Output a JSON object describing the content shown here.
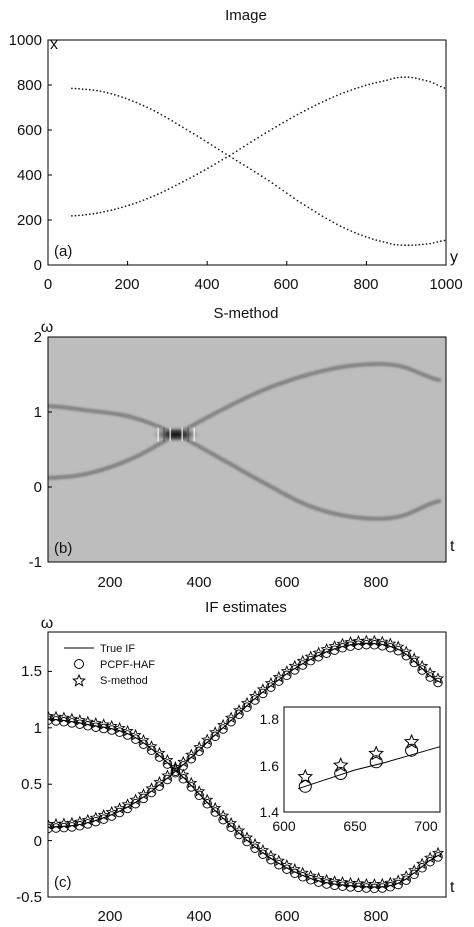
{
  "chart_data": [
    {
      "panel": "(a)",
      "type": "scatter",
      "title": "Image",
      "xlabel": "y",
      "ylabel": "x",
      "xlim": [
        0,
        1000
      ],
      "ylim": [
        0,
        1000
      ],
      "x_ticks": [
        "0",
        "200",
        "400",
        "600",
        "800",
        "1000"
      ],
      "y_ticks": [
        "0",
        "200",
        "400",
        "600",
        "800",
        "1000"
      ],
      "series": [
        {
          "x": [
            60,
            150,
            250,
            350,
            450,
            550,
            650,
            750,
            850,
            900,
            960,
            1000
          ],
          "y": [
            218,
            240,
            295,
            380,
            480,
            590,
            690,
            770,
            820,
            835,
            815,
            785
          ]
        },
        {
          "x": [
            60,
            150,
            250,
            350,
            450,
            550,
            650,
            750,
            850,
            900,
            960,
            1000
          ],
          "y": [
            785,
            765,
            700,
            600,
            490,
            380,
            260,
            160,
            100,
            88,
            95,
            110
          ]
        }
      ]
    },
    {
      "panel": "(b)",
      "type": "heatmap",
      "title": "S-method",
      "xlabel": "t",
      "ylabel": "ω",
      "xlim": [
        60,
        960
      ],
      "ylim": [
        -1,
        2
      ],
      "x_ticks": [
        "200",
        "400",
        "600",
        "800"
      ],
      "y_ticks": [
        "-1",
        "0",
        "1",
        "2"
      ],
      "series": [
        {
          "x": [
            60,
            150,
            250,
            350,
            450,
            550,
            650,
            750,
            850,
            950
          ],
          "y": [
            0.12,
            0.18,
            0.38,
            0.7,
            1.02,
            1.3,
            1.5,
            1.62,
            1.62,
            1.42
          ]
        },
        {
          "x": [
            60,
            150,
            250,
            350,
            450,
            550,
            650,
            750,
            850,
            950
          ],
          "y": [
            1.08,
            1.02,
            0.93,
            0.7,
            0.38,
            0.05,
            -0.25,
            -0.4,
            -0.4,
            -0.18
          ]
        }
      ]
    },
    {
      "panel": "(c)",
      "type": "line",
      "title": "IF estimates",
      "xlabel": "t",
      "ylabel": "ω",
      "xlim": [
        60,
        960
      ],
      "ylim": [
        -0.5,
        1.85
      ],
      "x_ticks": [
        "200",
        "400",
        "600",
        "800"
      ],
      "y_ticks": [
        "-0.5",
        "0",
        "0.5",
        "1",
        "1.5"
      ],
      "legend": {
        "position": "top-left",
        "entries": [
          "True IF",
          "PCPF-HAF",
          "S-method"
        ]
      },
      "series": [
        {
          "name": "True IF",
          "x": [
            60,
            150,
            250,
            350,
            450,
            550,
            650,
            750,
            850,
            950
          ],
          "y": [
            0.12,
            0.16,
            0.32,
            0.62,
            0.98,
            1.33,
            1.6,
            1.74,
            1.7,
            1.4
          ]
        },
        {
          "name": "True IF",
          "x": [
            60,
            150,
            250,
            350,
            450,
            550,
            650,
            750,
            850,
            950
          ],
          "y": [
            1.08,
            1.03,
            0.93,
            0.62,
            0.22,
            -0.12,
            -0.33,
            -0.4,
            -0.38,
            -0.12
          ]
        }
      ],
      "inset": {
        "xlim": [
          600,
          710
        ],
        "ylim": [
          1.4,
          1.85
        ],
        "x_ticks": [
          "600",
          "650",
          "700"
        ],
        "y_ticks": [
          "1.4",
          "1.6",
          "1.8"
        ],
        "true_if": {
          "x": [
            610,
            630,
            650,
            670,
            690,
            710
          ],
          "y": [
            1.5,
            1.54,
            1.58,
            1.61,
            1.645,
            1.68
          ]
        },
        "pcpf_haf": {
          "x": [
            615,
            640,
            665,
            690
          ],
          "y": [
            1.51,
            1.565,
            1.615,
            1.665
          ]
        },
        "s_method": {
          "x": [
            615,
            640,
            665,
            690
          ],
          "y": [
            1.55,
            1.6,
            1.65,
            1.7
          ]
        }
      }
    }
  ]
}
